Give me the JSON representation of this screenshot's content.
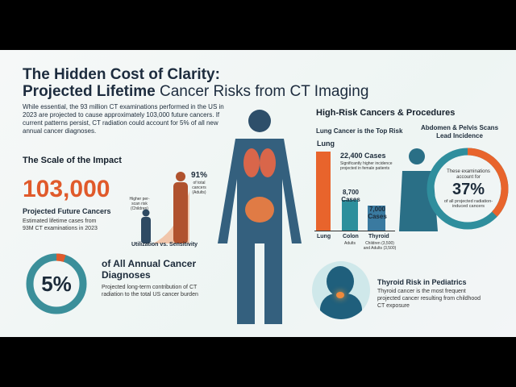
{
  "title": {
    "line1": "The Hidden Cost of Clarity:",
    "line2_bold": "Projected Lifetime",
    "line2_light": "Cancer Risks from CT Imaging"
  },
  "intro": "While essential, the 93 million CT examinations performed in the US in 2023 are projected to cause approximately 103,000 future cancers. If current patterns persist, CT radiation could account for 5% of all new annual cancer diagnoses.",
  "scale": {
    "heading": "The Scale of the Impact",
    "big_number": "103,000",
    "label": "Projected Future Cancers",
    "desc": "Estimated lifetime cases from 93M CT examinations in 2023",
    "child_label": "Higher per-scan risk (Children)",
    "adult_pct": "91%",
    "adult_label": "of total cancers (Adults)",
    "caption": "Utilization vs. Sensitivity"
  },
  "annual": {
    "pct": "5%",
    "pct_value": 5,
    "title": "of All Annual Cancer Diagnoses",
    "desc": "Projected long-term contribution of CT radiation to the total US cancer burden"
  },
  "high_risk": {
    "heading": "High-Risk Cancers & Procedures",
    "lung_heading": "Lung Cancer is the Top Risk",
    "bars": [
      {
        "name": "Lung",
        "value": 22400,
        "top_label": "Lung",
        "cases": "22,400 Cases",
        "note": "Significantly higher incidence projected in female patients",
        "sub": "",
        "color": "#e8642c"
      },
      {
        "name": "Colon",
        "value": 8700,
        "cases": "8,700 Cases",
        "sub": "Adults",
        "color": "#2c8f9c"
      },
      {
        "name": "Thyroid",
        "value": 7000,
        "cases": "7,000 Cases",
        "sub": "Children (3,500) and Adults (3,500)",
        "color": "#3a7aa0"
      }
    ],
    "abdomen_heading": "Abdomen & Pelvis Scans Lead Incidence",
    "abdomen_pre": "These examinations account for",
    "abdomen_pct": "37%",
    "abdomen_pct_value": 37,
    "abdomen_post": "of all projected radiation-induced cancers"
  },
  "thyroid": {
    "title": "Thyroid Risk in Pediatrics",
    "desc": "Thyroid cancer is the most frequent projected cancer resulting from childhood CT exposure"
  },
  "colors": {
    "navy": "#1d2c3e",
    "orange": "#e05a2b",
    "teal": "#2c8f9c",
    "purple": "#6a4c9c"
  }
}
